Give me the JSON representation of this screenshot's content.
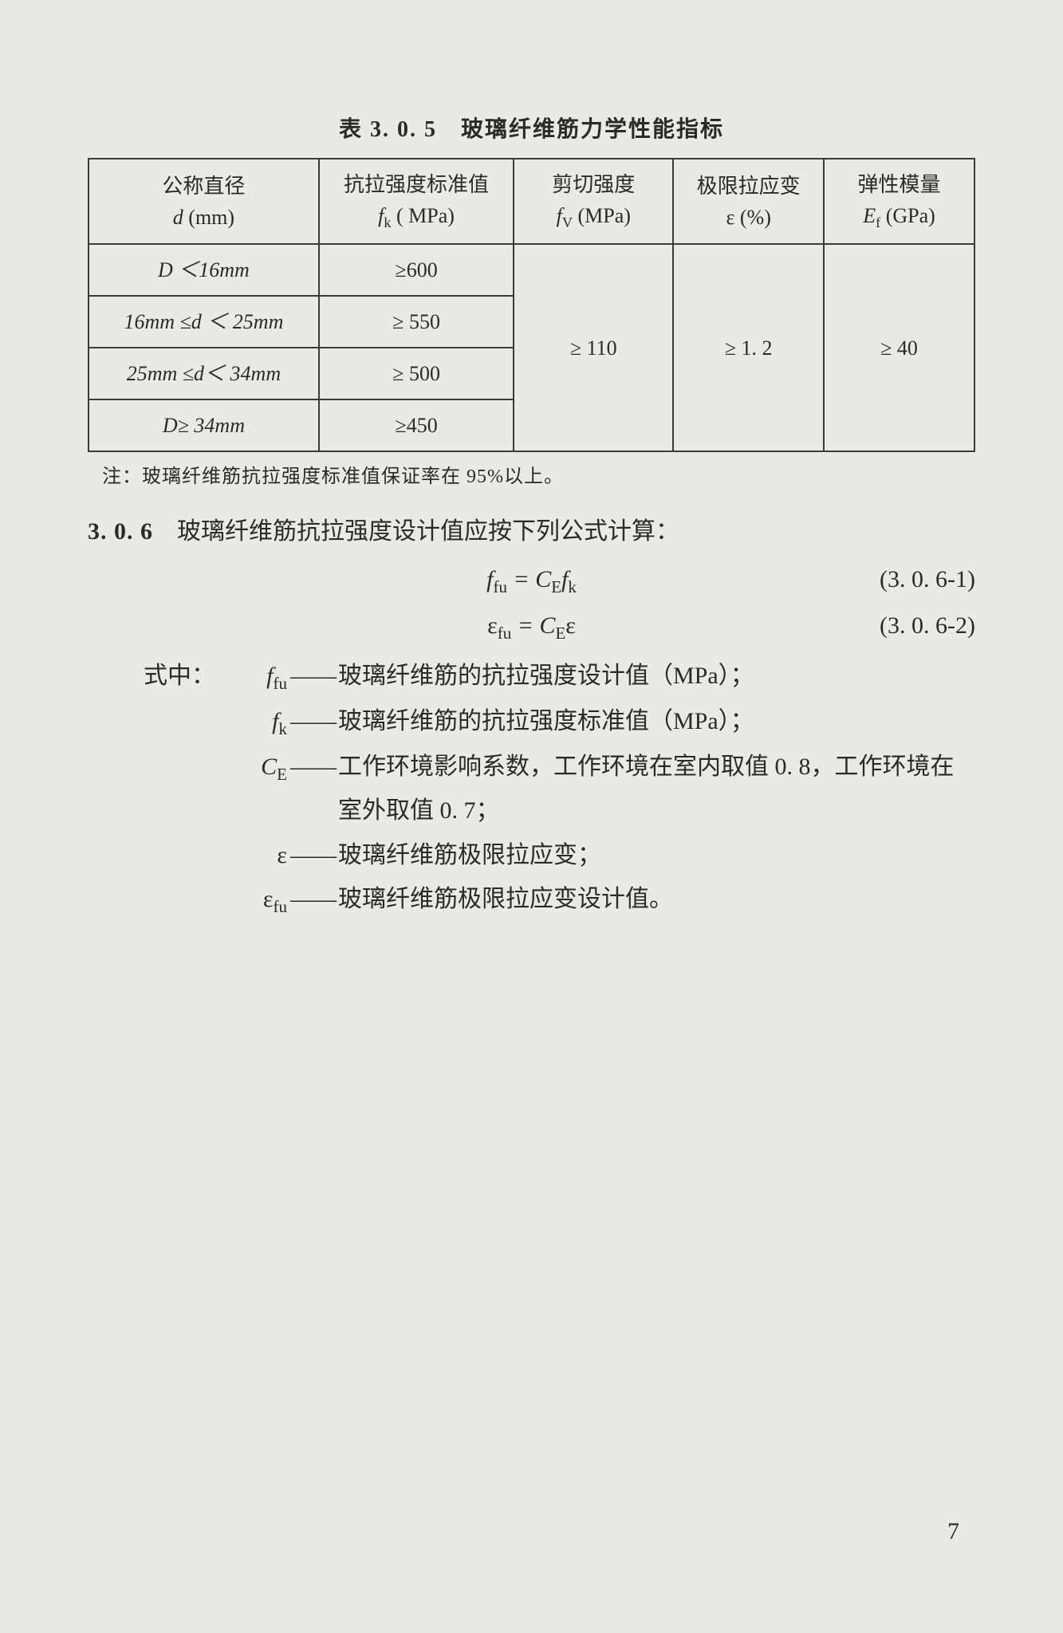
{
  "table": {
    "title": "表 3. 0. 5　玻璃纤维筋力学性能指标",
    "cols": [
      {
        "l1": "公称直径",
        "l2_sym": "d",
        "l2_unit": " (mm)"
      },
      {
        "l1": "抗拉强度标准值",
        "l2_sym": "f",
        "l2_sub": "k",
        "l2_unit": " ( MPa)"
      },
      {
        "l1": "剪切强度",
        "l2_sym": "f",
        "l2_sub": "V",
        "l2_unit": " (MPa)"
      },
      {
        "l1": "极限拉应变",
        "l2_plain": "ε (%)"
      },
      {
        "l1": "弹性模量",
        "l2_sym": "E",
        "l2_sub": "f",
        "l2_unit": " (GPa)"
      }
    ],
    "rows": [
      {
        "d": "D ＜16mm",
        "fk": "≥600"
      },
      {
        "d": "16mm ≤d ＜ 25mm",
        "fk": "≥ 550"
      },
      {
        "d": "25mm ≤d＜ 34mm",
        "fk": "≥ 500"
      },
      {
        "d": "D≥ 34mm",
        "fk": "≥450"
      }
    ],
    "merged": {
      "fv": "≥ 110",
      "eps": "≥ 1. 2",
      "ef": "≥ 40"
    },
    "note": "注：玻璃纤维筋抗拉强度标准值保证率在 95%以上。"
  },
  "section": {
    "num": "3. 0. 6",
    "text": "玻璃纤维筋抗拉强度设计值应按下列公式计算：",
    "eq1": {
      "body": "f",
      "body_sub": "fu",
      "rhs_l": " = C",
      "rhs_sub": "E",
      "rhs_r": "f",
      "rhs_r_sub": "k",
      "label": "(3. 0. 6-1)"
    },
    "eq2": {
      "body": "ε",
      "body_sub": "fu",
      "rhs_l": " = C",
      "rhs_sub": "E",
      "rhs_r": "ε",
      "label": "(3. 0. 6-2)"
    },
    "where": "式中：",
    "defs": [
      {
        "sym": "f",
        "sub": "fu",
        "text": "玻璃纤维筋的抗拉强度设计值（MPa）；"
      },
      {
        "sym": "f",
        "sub": "k",
        "text": "玻璃纤维筋的抗拉强度标准值（MPa）；"
      },
      {
        "sym": "C",
        "sub": "E",
        "text": "工作环境影响系数，工作环境在室内取值 0. 8，工作环境在室外取值 0. 7；"
      },
      {
        "sym_plain": "ε",
        "text": "玻璃纤维筋极限拉应变；"
      },
      {
        "sym": "ε",
        "sub": "fu",
        "text": "玻璃纤维筋极限拉应变设计值。"
      }
    ]
  },
  "page": "7"
}
